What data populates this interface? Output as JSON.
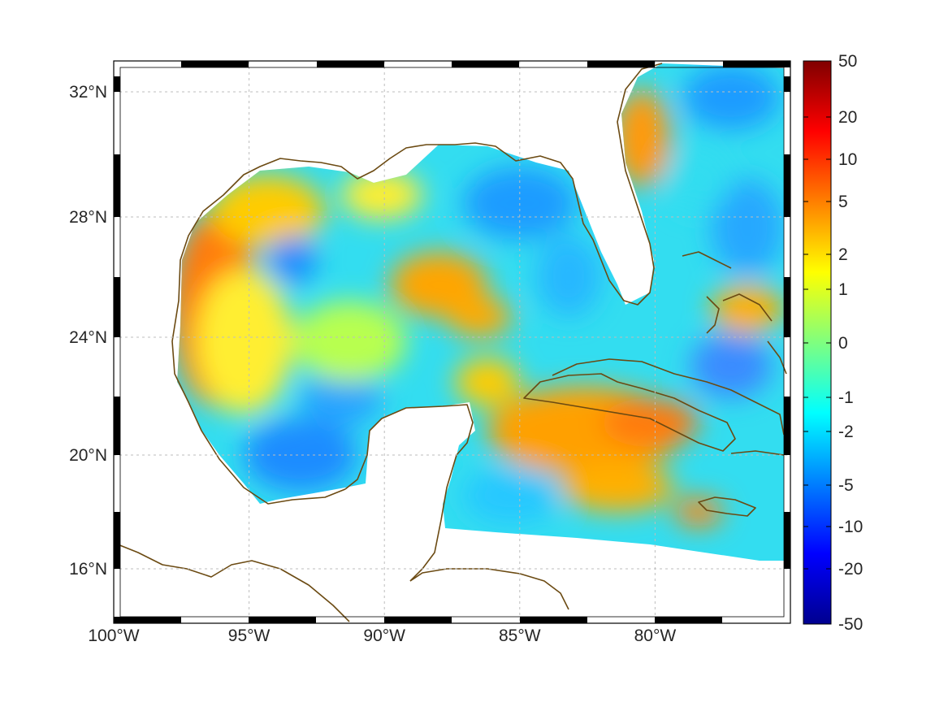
{
  "map": {
    "lon_range": [
      -100,
      -75
    ],
    "lat_range": [
      14.2,
      33
    ],
    "x_tick_labels": [
      "100°W",
      "95°W",
      "90°W",
      "85°W",
      "80°W"
    ],
    "y_tick_labels": [
      "32°N",
      "28°N",
      "24°N",
      "20°N",
      "16°N"
    ],
    "coastline_color": "#6b4a12",
    "gridlines": "dashed"
  },
  "colorbar": {
    "tick_labels": [
      "50",
      "20",
      "10",
      "5",
      "2",
      "1",
      "0",
      "-1",
      "-2",
      "-5",
      "-10",
      "-20",
      "-50"
    ],
    "colormap": "jet",
    "range": [
      -50,
      50
    ]
  }
}
